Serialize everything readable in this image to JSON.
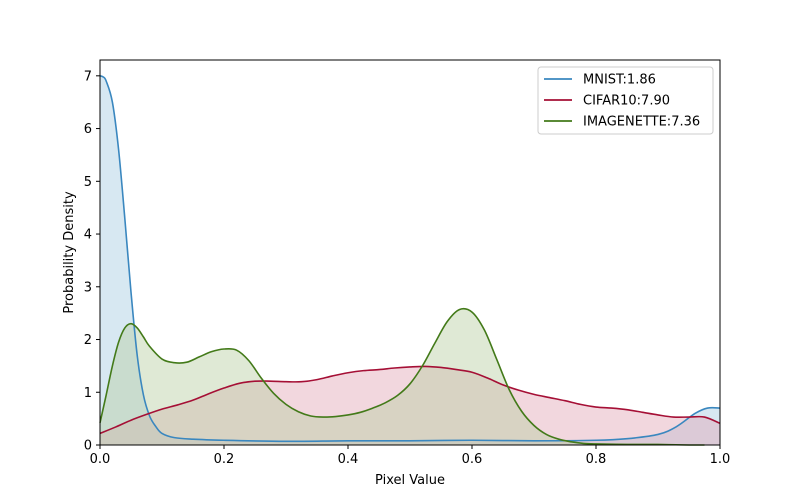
{
  "chart_data": {
    "type": "area",
    "title": "",
    "xlabel": "Pixel Value",
    "ylabel": "Probability Density",
    "xlim": [
      0,
      1
    ],
    "ylim": [
      0,
      7.3
    ],
    "xticks": [
      0.0,
      0.2,
      0.4,
      0.6,
      0.8,
      1.0
    ],
    "xtick_labels": [
      "0.0",
      "0.2",
      "0.4",
      "0.6",
      "0.8",
      "1.0"
    ],
    "yticks": [
      0,
      1,
      2,
      3,
      4,
      5,
      6,
      7
    ],
    "ytick_labels": [
      "0",
      "1",
      "2",
      "3",
      "4",
      "5",
      "6",
      "7"
    ],
    "grid": false,
    "legend_position": "top-right",
    "series": [
      {
        "name": "MNIST:1.86",
        "color": "#3a87bf",
        "fill": "#a6cbe3",
        "x": [
          0,
          0.005,
          0.01,
          0.02,
          0.03,
          0.04,
          0.05,
          0.06,
          0.07,
          0.08,
          0.09,
          0.1,
          0.12,
          0.15,
          0.2,
          0.3,
          0.4,
          0.5,
          0.6,
          0.7,
          0.8,
          0.85,
          0.9,
          0.93,
          0.96,
          0.98,
          1.0
        ],
        "values": [
          7.0,
          6.98,
          6.9,
          6.5,
          5.6,
          4.3,
          2.9,
          1.7,
          0.95,
          0.55,
          0.35,
          0.22,
          0.14,
          0.11,
          0.09,
          0.07,
          0.08,
          0.08,
          0.09,
          0.08,
          0.09,
          0.12,
          0.2,
          0.35,
          0.6,
          0.7,
          0.7
        ]
      },
      {
        "name": "CIFAR10:7.90",
        "color": "#a50f35",
        "fill": "#e3a7b5",
        "x": [
          0,
          0.025,
          0.05,
          0.075,
          0.1,
          0.125,
          0.15,
          0.175,
          0.2,
          0.225,
          0.25,
          0.275,
          0.3,
          0.325,
          0.35,
          0.375,
          0.4,
          0.425,
          0.45,
          0.475,
          0.5,
          0.525,
          0.55,
          0.575,
          0.6,
          0.625,
          0.65,
          0.675,
          0.7,
          0.725,
          0.75,
          0.775,
          0.8,
          0.825,
          0.85,
          0.875,
          0.9,
          0.925,
          0.95,
          0.975,
          1.0
        ],
        "values": [
          0.22,
          0.34,
          0.47,
          0.58,
          0.68,
          0.76,
          0.85,
          0.97,
          1.08,
          1.17,
          1.21,
          1.21,
          1.2,
          1.2,
          1.24,
          1.31,
          1.37,
          1.41,
          1.43,
          1.46,
          1.48,
          1.49,
          1.47,
          1.43,
          1.38,
          1.27,
          1.14,
          1.04,
          0.96,
          0.9,
          0.84,
          0.77,
          0.72,
          0.7,
          0.67,
          0.62,
          0.57,
          0.53,
          0.53,
          0.53,
          0.41
        ]
      },
      {
        "name": "IMAGENETTE:7.36",
        "color": "#437a19",
        "fill": "#b7cfa2",
        "x": [
          0,
          0.01,
          0.02,
          0.03,
          0.04,
          0.05,
          0.06,
          0.07,
          0.08,
          0.1,
          0.12,
          0.14,
          0.16,
          0.18,
          0.2,
          0.22,
          0.24,
          0.26,
          0.28,
          0.3,
          0.32,
          0.34,
          0.36,
          0.38,
          0.4,
          0.42,
          0.44,
          0.46,
          0.48,
          0.5,
          0.52,
          0.54,
          0.56,
          0.58,
          0.6,
          0.62,
          0.64,
          0.66,
          0.68,
          0.7,
          0.72,
          0.74,
          0.76,
          0.78,
          0.8,
          0.85,
          0.9,
          0.95,
          0.975
        ],
        "values": [
          0.42,
          0.95,
          1.5,
          1.95,
          2.22,
          2.3,
          2.22,
          2.05,
          1.87,
          1.63,
          1.56,
          1.57,
          1.67,
          1.77,
          1.82,
          1.8,
          1.6,
          1.27,
          0.98,
          0.77,
          0.63,
          0.55,
          0.53,
          0.54,
          0.57,
          0.62,
          0.7,
          0.8,
          0.94,
          1.16,
          1.5,
          1.93,
          2.34,
          2.57,
          2.52,
          2.18,
          1.62,
          1.05,
          0.64,
          0.37,
          0.2,
          0.11,
          0.06,
          0.03,
          0.02,
          0.01,
          0.01,
          0.0,
          0.0
        ]
      }
    ]
  }
}
